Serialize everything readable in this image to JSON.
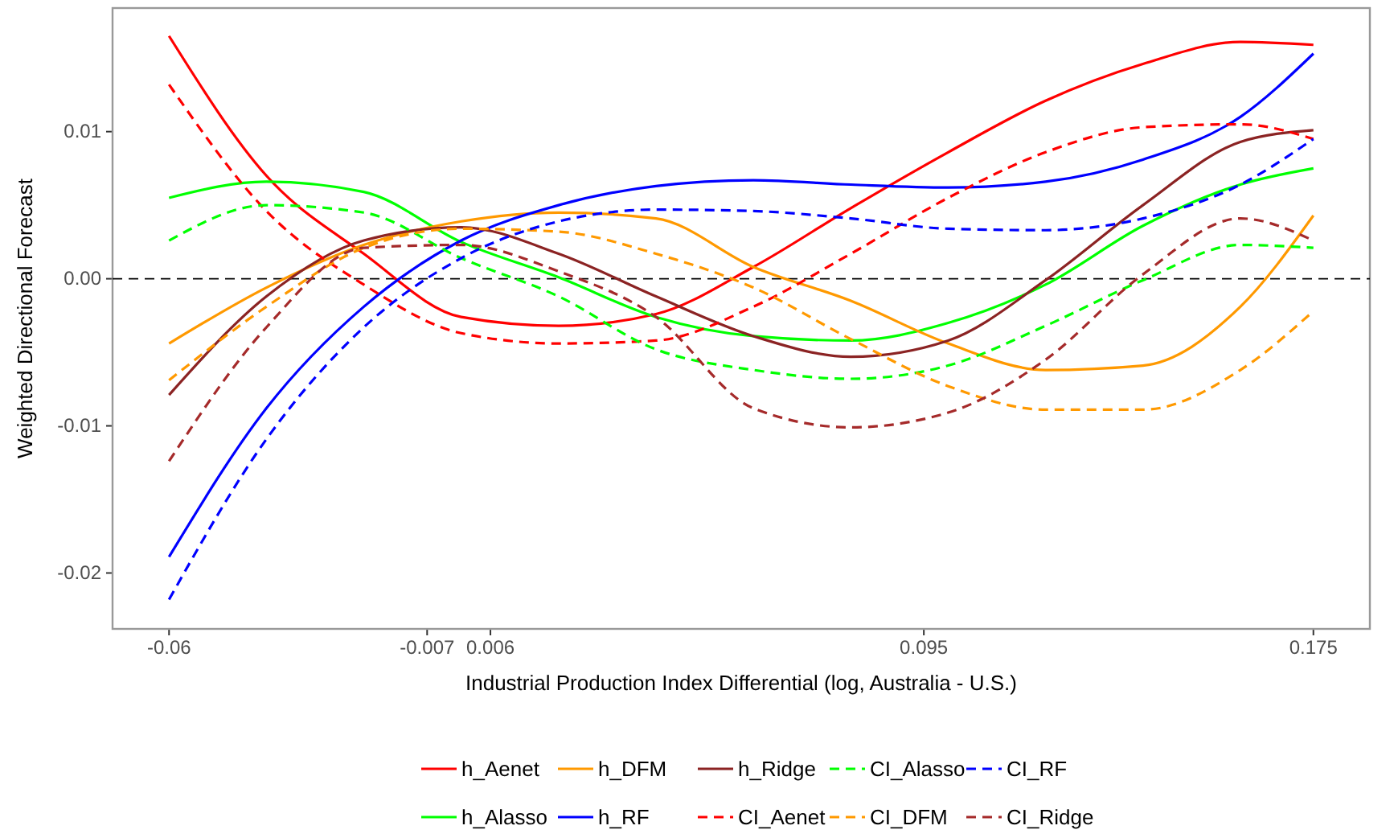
{
  "chart_data": {
    "type": "line",
    "xlabel": "Industrial Production Index Differential (log, Australia - U.S.)",
    "ylabel": "Weighted Directional Forecast",
    "x": [
      -0.06,
      -0.04,
      -0.02,
      0,
      0.02,
      0.04,
      0.06,
      0.08,
      0.1,
      0.12,
      0.14,
      0.16,
      0.175
    ],
    "xlim": [
      -0.0716,
      0.1866
    ],
    "xticks": [
      -0.06,
      -0.007,
      0.006,
      0.095,
      0.175
    ],
    "ylim": [
      -0.0238,
      0.0184
    ],
    "yticks": [
      {
        "value": -0.02,
        "label": "-0.02"
      },
      {
        "value": -0.01,
        "label": "-0.01"
      },
      {
        "value": 0,
        "label": "0.00"
      },
      {
        "value": 0.01,
        "label": "0.01"
      }
    ],
    "grid": false,
    "legend": "bottom",
    "ref_lines": [
      {
        "axis": "y",
        "value": 0,
        "label": null,
        "color": "#000000",
        "line_style": "dashed"
      }
    ],
    "series": [
      {
        "name": "h_Aenet",
        "color": "#ff0000",
        "line_style": "solid",
        "values": [
          0.0165,
          0.007,
          0.0017,
          -0.0026,
          -0.0032,
          -0.0024,
          0.0008,
          0.0048,
          0.0086,
          0.0121,
          0.0146,
          0.0161,
          0.0159
        ]
      },
      {
        "name": "h_Alasso",
        "color": "#00ff00",
        "line_style": "solid",
        "values": [
          0.0055,
          0.0066,
          0.0059,
          0.0025,
          0.0001,
          -0.0026,
          -0.0039,
          -0.0042,
          -0.003,
          -0.0004,
          0.0036,
          0.0064,
          0.0075
        ]
      },
      {
        "name": "h_DFM",
        "color": "#ff9900",
        "line_style": "solid",
        "values": [
          -0.0044,
          -0.0006,
          0.0023,
          0.0039,
          0.0045,
          0.0041,
          0.0008,
          -0.0015,
          -0.0044,
          -0.0062,
          -0.0059,
          -0.0019,
          0.0043
        ]
      },
      {
        "name": "h_RF",
        "color": "#0000ff",
        "line_style": "solid",
        "values": [
          -0.0189,
          -0.0088,
          -0.0019,
          0.0026,
          0.005,
          0.0063,
          0.0067,
          0.0064,
          0.0062,
          0.0066,
          0.0081,
          0.011,
          0.0153
        ]
      },
      {
        "name": "h_Ridge",
        "color": "#8b2323",
        "line_style": "solid",
        "values": [
          -0.0079,
          -0.0012,
          0.0026,
          0.0035,
          0.0017,
          -0.0012,
          -0.0039,
          -0.0053,
          -0.0042,
          -0.0001,
          0.005,
          0.0093,
          0.0101
        ]
      },
      {
        "name": "CI_Aenet",
        "color": "#ff0000",
        "line_style": "dashed",
        "values": [
          0.0132,
          0.0046,
          -0.0004,
          -0.0037,
          -0.0044,
          -0.0042,
          -0.0019,
          0.0017,
          0.0055,
          0.0086,
          0.0103,
          0.0105,
          0.0095
        ]
      },
      {
        "name": "CI_Alasso",
        "color": "#00ff00",
        "line_style": "dashed",
        "values": [
          0.0026,
          0.005,
          0.0045,
          0.0014,
          -0.0012,
          -0.0048,
          -0.0062,
          -0.0068,
          -0.0059,
          -0.0032,
          -0.0001,
          0.0023,
          0.0021
        ]
      },
      {
        "name": "CI_DFM",
        "color": "#ff9900",
        "line_style": "dashed",
        "values": [
          -0.0069,
          -0.0019,
          0.0021,
          0.0034,
          0.0032,
          0.0017,
          -0.0006,
          -0.0041,
          -0.0073,
          -0.0089,
          -0.0089,
          -0.0062,
          -0.0022
        ]
      },
      {
        "name": "CI_RF",
        "color": "#0000ff",
        "line_style": "dashed",
        "values": [
          -0.0218,
          -0.0109,
          -0.0033,
          0.0014,
          0.0039,
          0.0047,
          0.0046,
          0.0041,
          0.0034,
          0.0033,
          0.0041,
          0.0064,
          0.0095
        ]
      },
      {
        "name": "CI_Ridge",
        "color": "#a52a2a",
        "line_style": "dashed",
        "values": [
          -0.0124,
          -0.0033,
          0.0021,
          0.0023,
          0.0005,
          -0.0026,
          -0.0088,
          -0.0101,
          -0.0091,
          -0.0055,
          0.0003,
          0.0041,
          0.0026
        ]
      }
    ]
  }
}
